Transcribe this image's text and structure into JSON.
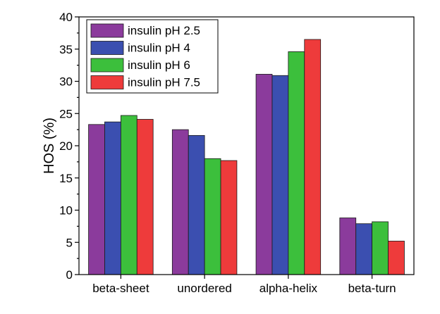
{
  "chart_data": {
    "type": "bar",
    "categories": [
      "beta-sheet",
      "unordered",
      "alpha-helix",
      "beta-turn"
    ],
    "series": [
      {
        "name": "insulin pH 2.5",
        "color": "#8b3b9c",
        "values": [
          23.3,
          22.5,
          31.1,
          8.8
        ]
      },
      {
        "name": "insulin pH 4",
        "color": "#3b4fb0",
        "values": [
          23.7,
          21.6,
          30.9,
          7.9
        ]
      },
      {
        "name": "insulin pH 6",
        "color": "#3cbf3c",
        "values": [
          24.7,
          18.0,
          34.6,
          8.2
        ]
      },
      {
        "name": "insulin pH 7.5",
        "color": "#ee3b3b",
        "values": [
          24.1,
          17.7,
          36.5,
          5.2
        ]
      }
    ],
    "xlabel": "",
    "ylabel": "HOS (%)",
    "ylim": [
      0,
      40
    ],
    "yticks": [
      0,
      5,
      10,
      15,
      20,
      25,
      30,
      35,
      40
    ],
    "legend_position": "top-left",
    "grid": false
  }
}
